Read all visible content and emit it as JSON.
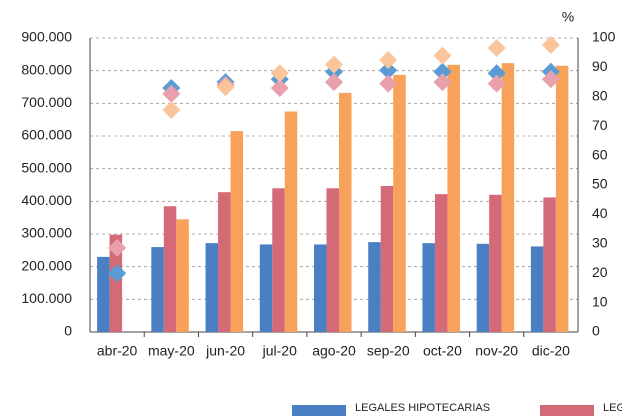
{
  "chart_data": {
    "type": "bar",
    "categories": [
      "abr-20",
      "may-20",
      "jun-20",
      "jul-20",
      "ago-20",
      "sep-20",
      "oct-20",
      "nov-20",
      "dic-20"
    ],
    "ylim": [
      0,
      900000
    ],
    "yticks": [
      0,
      {
        "value": 100000,
        "label": "100.000"
      },
      {
        "value": 200000,
        "label": "200.000"
      },
      {
        "value": 300000,
        "label": "300.000"
      },
      {
        "value": 400000,
        "label": "400.000"
      },
      {
        "value": 500000,
        "label": "500.000"
      },
      {
        "value": 600000,
        "label": "600.000"
      },
      {
        "value": 700000,
        "label": "700.000"
      },
      {
        "value": 800000,
        "label": "800.000"
      },
      {
        "value": 900000,
        "label": "900.000"
      }
    ],
    "y2label": "%",
    "y2lim": [
      0,
      100
    ],
    "y2ticks": [
      0,
      10,
      20,
      30,
      40,
      50,
      60,
      70,
      80,
      90,
      100
    ],
    "grid": true,
    "series": [
      {
        "name": "LEGALES HIPOTECARIAS",
        "color": "#4a7fc4",
        "values": [
          230000,
          260000,
          272000,
          268000,
          268000,
          275000,
          272000,
          270000,
          262000
        ]
      },
      {
        "name": "LEG",
        "color": "#d46a78",
        "values": [
          298000,
          385000,
          428000,
          440000,
          440000,
          447000,
          422000,
          420000,
          412000
        ]
      },
      {
        "color": "#f7a15a",
        "values": [
          null,
          345000,
          615000,
          675000,
          732000,
          787000,
          818000,
          823000,
          815000
        ]
      },
      {
        "type": "diamond",
        "axis": "y2",
        "color": "#5b9bd5",
        "values": [
          20,
          83,
          85,
          86,
          88.5,
          89,
          88.5,
          88,
          88.5
        ]
      },
      {
        "type": "diamond",
        "axis": "y2",
        "color": "#e8a0ad",
        "values": [
          28.6,
          81,
          84,
          83,
          85,
          84.5,
          85,
          84.5,
          86
        ]
      },
      {
        "type": "diamond",
        "axis": "y2",
        "color": "#fbc59c",
        "values": [
          null,
          75.5,
          83.3,
          88,
          91,
          92.5,
          94,
          96.6,
          97.6
        ]
      }
    ]
  }
}
